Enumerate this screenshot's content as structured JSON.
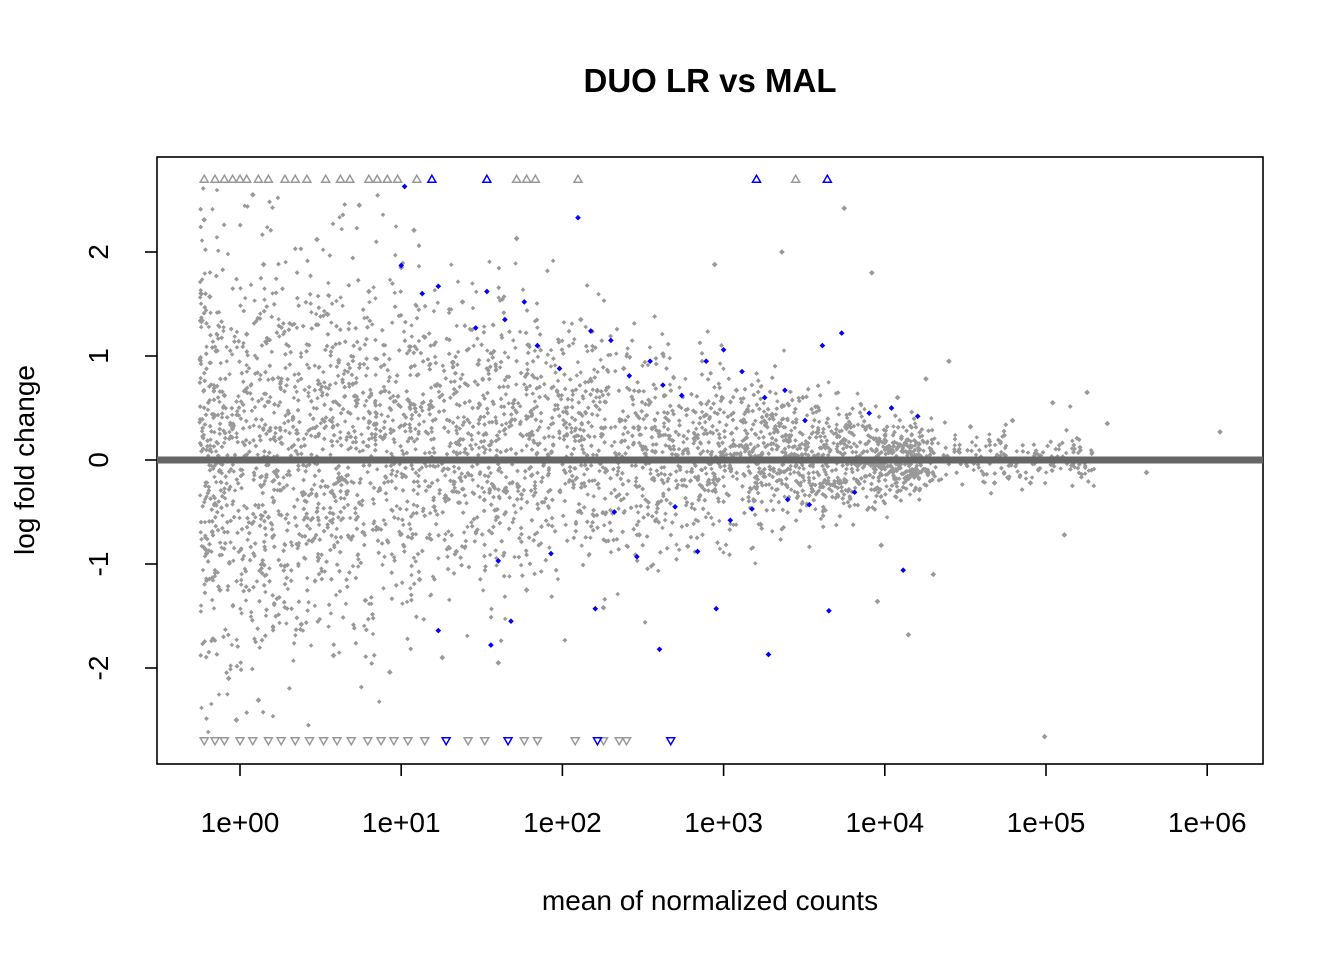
{
  "chart_data": {
    "type": "scatter",
    "title": "DUO LR vs MAL",
    "xlabel": "mean of normalized counts",
    "ylabel": "log fold change",
    "x_scale": "log10",
    "x_ticks": [
      "1e+00",
      "1e+01",
      "1e+02",
      "1e+03",
      "1e+04",
      "1e+05",
      "1e+06"
    ],
    "x_tick_values": [
      1,
      10,
      100,
      1000,
      10000,
      100000,
      1000000
    ],
    "y_ticks": [
      "-2",
      "-1",
      "0",
      "1",
      "2"
    ],
    "y_tick_values": [
      -2,
      -1,
      0,
      1,
      2
    ],
    "xlim": [
      0.32,
      2000000
    ],
    "ylim": [
      -2.9,
      2.9
    ],
    "hline": {
      "y": 0,
      "color": "#666666"
    },
    "colors": {
      "not_significant": "#999999",
      "significant": "#0000ff"
    },
    "series": [
      {
        "name": "",
        "color": "#999999",
        "points": [
          [
            0.6,
            2.31
          ],
          [
            0.65,
            1.57
          ],
          [
            0.72,
            1.05
          ],
          [
            0.8,
            0.62
          ],
          [
            0.9,
            0.31
          ],
          [
            0.7,
            -0.42
          ],
          [
            0.62,
            -0.9
          ],
          [
            0.75,
            -1.25
          ],
          [
            0.68,
            -1.72
          ],
          [
            0.85,
            -2.1
          ],
          [
            0.95,
            -2.5
          ],
          [
            1.2,
            2.55
          ],
          [
            1.4,
            1.88
          ],
          [
            1.1,
            1.21
          ],
          [
            1.6,
            0.78
          ],
          [
            2.0,
            0.45
          ],
          [
            1.5,
            -0.55
          ],
          [
            1.9,
            -1.02
          ],
          [
            2.4,
            -1.58
          ],
          [
            1.3,
            -2.31
          ],
          [
            3.0,
            2.12
          ],
          [
            3.5,
            1.4
          ],
          [
            4.1,
            0.96
          ],
          [
            2.8,
            -0.78
          ],
          [
            3.8,
            -1.88
          ],
          [
            5.5,
            2.45
          ],
          [
            6.3,
            1.62
          ],
          [
            5.0,
            0.73
          ],
          [
            7.2,
            -0.66
          ],
          [
            6.0,
            -1.35
          ],
          [
            8.5,
            -2.04
          ],
          [
            12,
            2.21
          ],
          [
            10,
            1.85
          ],
          [
            14,
            1.18
          ],
          [
            11,
            0.58
          ],
          [
            16,
            -0.45
          ],
          [
            13,
            -1.15
          ],
          [
            18,
            -1.9
          ],
          [
            24,
            1.52
          ],
          [
            30,
            0.92
          ],
          [
            22,
            -0.88
          ],
          [
            40,
            -1.95
          ],
          [
            52,
            2.13
          ],
          [
            70,
            1.1
          ],
          [
            95,
            0.62
          ],
          [
            60,
            -1.25
          ],
          [
            130,
            1.35
          ],
          [
            180,
            -1.42
          ],
          [
            240,
            0.88
          ],
          [
            300,
            -0.72
          ],
          [
            420,
            1.02
          ],
          [
            600,
            -0.83
          ],
          [
            880,
            1.88
          ],
          [
            1200,
            0.67
          ],
          [
            1700,
            -0.62
          ],
          [
            2300,
            2.0
          ],
          [
            3100,
            0.6
          ],
          [
            4200,
            -0.48
          ],
          [
            5600,
            2.42
          ],
          [
            8300,
            1.8
          ],
          [
            9500,
            -0.82
          ],
          [
            12000,
            0.6
          ],
          [
            18000,
            0.78
          ],
          [
            25000,
            0.95
          ],
          [
            34000,
            0.32
          ],
          [
            48000,
            -0.22
          ],
          [
            62000,
            0.38
          ],
          [
            80000,
            -0.22
          ],
          [
            110000,
            0.55
          ],
          [
            180000,
            0.65
          ],
          [
            98000,
            -2.66
          ],
          [
            240000,
            0.35
          ],
          [
            420000,
            -0.12
          ],
          [
            1200000,
            0.27
          ],
          [
            130000,
            -0.72
          ],
          [
            9000,
            -1.36
          ],
          [
            14000,
            -1.68
          ],
          [
            20000,
            -1.1
          ]
        ]
      },
      {
        "name": "",
        "color": "#0000ff",
        "points": [
          [
            10.5,
            2.63
          ],
          [
            10,
            1.87
          ],
          [
            13.5,
            1.6
          ],
          [
            17,
            1.67
          ],
          [
            29,
            1.27
          ],
          [
            34,
            1.62
          ],
          [
            44,
            1.35
          ],
          [
            58,
            1.52
          ],
          [
            70,
            1.1
          ],
          [
            96,
            0.88
          ],
          [
            125,
            2.33
          ],
          [
            150,
            1.24
          ],
          [
            200,
            1.15
          ],
          [
            260,
            0.81
          ],
          [
            350,
            0.95
          ],
          [
            420,
            0.72
          ],
          [
            550,
            0.62
          ],
          [
            780,
            0.95
          ],
          [
            1000,
            1.06
          ],
          [
            1300,
            0.85
          ],
          [
            1800,
            0.6
          ],
          [
            2400,
            0.67
          ],
          [
            3200,
            0.38
          ],
          [
            4100,
            1.1
          ],
          [
            5400,
            1.22
          ],
          [
            8000,
            0.45
          ],
          [
            11000,
            0.5
          ],
          [
            16000,
            0.42
          ],
          [
            40,
            -0.97
          ],
          [
            48,
            -1.55
          ],
          [
            85,
            -0.9
          ],
          [
            160,
            -1.43
          ],
          [
            210,
            -0.5
          ],
          [
            290,
            -0.93
          ],
          [
            400,
            -1.82
          ],
          [
            500,
            -0.45
          ],
          [
            690,
            -0.88
          ],
          [
            900,
            -1.43
          ],
          [
            1100,
            -0.58
          ],
          [
            1500,
            -0.47
          ],
          [
            1900,
            -1.87
          ],
          [
            2500,
            -0.38
          ],
          [
            3400,
            -0.43
          ],
          [
            4500,
            -1.45
          ],
          [
            6500,
            -0.31
          ],
          [
            13000,
            -1.06
          ],
          [
            17,
            -1.64
          ],
          [
            36,
            -1.78
          ]
        ]
      },
      {
        "name": "",
        "marker": "triangle-up",
        "color": "#999999",
        "points": [
          [
            0.6,
            2.7
          ],
          [
            0.7,
            2.7
          ],
          [
            0.8,
            2.7
          ],
          [
            0.9,
            2.7
          ],
          [
            1.0,
            2.7
          ],
          [
            1.1,
            2.7
          ],
          [
            1.3,
            2.7
          ],
          [
            1.5,
            2.7
          ],
          [
            1.9,
            2.7
          ],
          [
            2.2,
            2.7
          ],
          [
            2.6,
            2.7
          ],
          [
            3.4,
            2.7
          ],
          [
            4.2,
            2.7
          ],
          [
            4.8,
            2.7
          ],
          [
            6.3,
            2.7
          ],
          [
            7.1,
            2.7
          ],
          [
            8.2,
            2.7
          ],
          [
            9.5,
            2.7
          ],
          [
            12.5,
            2.7
          ],
          [
            52,
            2.7
          ],
          [
            60,
            2.7
          ],
          [
            68,
            2.7
          ],
          [
            125,
            2.7
          ],
          [
            2800,
            2.7
          ]
        ]
      },
      {
        "name": "",
        "marker": "triangle-up",
        "color": "#0000ff",
        "points": [
          [
            15.5,
            2.7
          ],
          [
            34,
            2.7
          ],
          [
            1600,
            2.7
          ],
          [
            4400,
            2.7
          ]
        ]
      },
      {
        "name": "",
        "marker": "triangle-down",
        "color": "#999999",
        "points": [
          [
            0.6,
            -2.7
          ],
          [
            0.7,
            -2.7
          ],
          [
            0.8,
            -2.7
          ],
          [
            1.0,
            -2.7
          ],
          [
            1.2,
            -2.7
          ],
          [
            1.5,
            -2.7
          ],
          [
            1.8,
            -2.7
          ],
          [
            2.2,
            -2.7
          ],
          [
            2.7,
            -2.7
          ],
          [
            3.3,
            -2.7
          ],
          [
            4.0,
            -2.7
          ],
          [
            4.9,
            -2.7
          ],
          [
            6.2,
            -2.7
          ],
          [
            7.5,
            -2.7
          ],
          [
            9.0,
            -2.7
          ],
          [
            11,
            -2.7
          ],
          [
            14,
            -2.7
          ],
          [
            26,
            -2.7
          ],
          [
            33,
            -2.7
          ],
          [
            58,
            -2.7
          ],
          [
            70,
            -2.7
          ],
          [
            120,
            -2.7
          ],
          [
            180,
            -2.7
          ],
          [
            225,
            -2.7
          ],
          [
            250,
            -2.7
          ]
        ]
      },
      {
        "name": "",
        "marker": "triangle-down",
        "color": "#0000ff",
        "points": [
          [
            19,
            -2.7
          ],
          [
            46,
            -2.7
          ],
          [
            165,
            -2.7
          ],
          [
            470,
            -2.7
          ]
        ]
      }
    ]
  }
}
